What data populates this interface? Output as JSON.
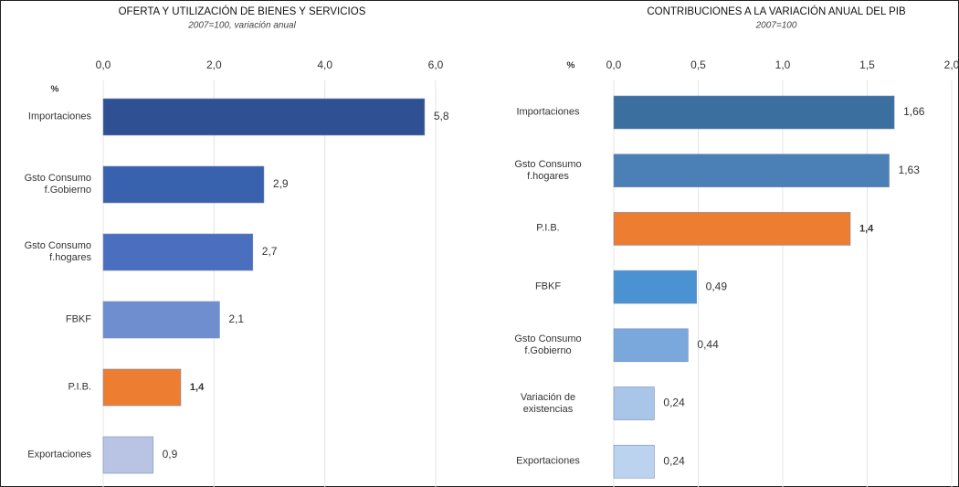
{
  "chart_data": [
    {
      "type": "bar",
      "orientation": "horizontal",
      "title": "OFERTA Y UTILIZACIÓN DE BIENES Y SERVICIOS",
      "subtitle": "2007=100, variación anual",
      "unit_label": "%",
      "categories": [
        "Importaciones",
        "Gsto Consumo\nf.Gobierno",
        "Gsto Consumo\nf.hogares",
        "FBKF",
        "P.I.B.",
        "Exportaciones"
      ],
      "values": [
        5.8,
        2.9,
        2.7,
        2.1,
        1.4,
        0.9
      ],
      "value_labels": [
        "5,8",
        "2,9",
        "2,7",
        "2,1",
        "1,4",
        "0,9"
      ],
      "colors": [
        "#2f5193",
        "#3862ad",
        "#4a6fbf",
        "#6f8ed0",
        "#ed7d31",
        "#b9c4e4"
      ],
      "xlim": [
        0,
        6
      ],
      "xticks": [
        {
          "value": 0,
          "label": "0,0"
        },
        {
          "value": 2,
          "label": "2,0"
        },
        {
          "value": 4,
          "label": "4,0"
        },
        {
          "value": 6,
          "label": "6,0"
        }
      ],
      "grid": true
    },
    {
      "type": "bar",
      "orientation": "horizontal",
      "title": "CONTRIBUCIONES A LA VARIACIÓN ANUAL DEL PIB",
      "subtitle": "2007=100",
      "unit_label": "%",
      "categories": [
        "Importaciones",
        "Gsto Consumo\nf.hogares",
        "P.I.B.",
        "FBKF",
        "Gsto Consumo\nf.Gobierno",
        "Variación de\nexistencias",
        "Exportaciones"
      ],
      "values": [
        1.66,
        1.63,
        1.4,
        0.49,
        0.44,
        0.24,
        0.24
      ],
      "value_labels": [
        "1,66",
        "1,63",
        "1,4",
        "0,49",
        "0,44",
        "0,24",
        "0,24"
      ],
      "colors": [
        "#3b6f9f",
        "#4a80b6",
        "#ed7d31",
        "#4a92d2",
        "#7aa8dc",
        "#a9c5e8",
        "#bcd3ef"
      ],
      "xlim": [
        0,
        2
      ],
      "xticks": [
        {
          "value": 0,
          "label": "0,0"
        },
        {
          "value": 0.5,
          "label": "0,5"
        },
        {
          "value": 1,
          "label": "1,0"
        },
        {
          "value": 1.5,
          "label": "1,5"
        },
        {
          "value": 2,
          "label": "2,0"
        }
      ],
      "grid": true
    }
  ]
}
